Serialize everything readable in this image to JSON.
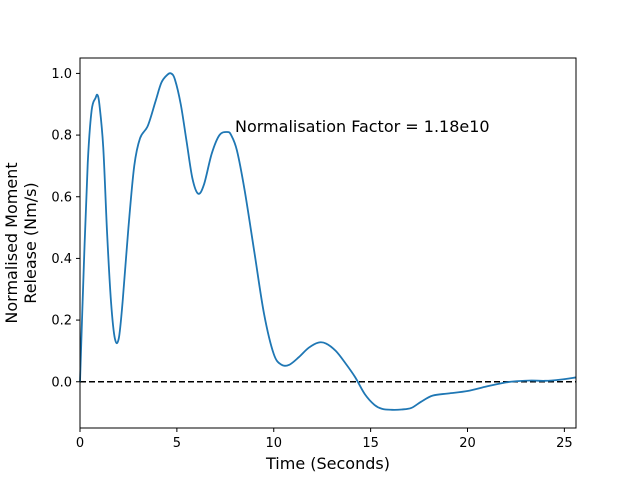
{
  "chart_data": {
    "type": "line",
    "title": "",
    "xlabel": "Time (Seconds)",
    "ylabel_lines": [
      "Normalised Moment",
      "Release (Nm/s)"
    ],
    "xlim": [
      0,
      25.6
    ],
    "ylim": [
      -0.15,
      1.05
    ],
    "xticks": [
      0,
      5,
      10,
      15,
      20,
      25
    ],
    "yticks": [
      0.0,
      0.2,
      0.4,
      0.6,
      0.8,
      1.0
    ],
    "xtick_labels": [
      "0",
      "5",
      "10",
      "15",
      "20",
      "25"
    ],
    "ytick_labels": [
      "0.0",
      "0.2",
      "0.4",
      "0.6",
      "0.8",
      "1.0"
    ],
    "grid": false,
    "annotation": {
      "text": "Normalisation Factor = 1.18e10",
      "x": 8.0,
      "y": 0.81
    },
    "reference_line": {
      "y": 0.0,
      "style": "dashed",
      "color": "#000000"
    },
    "series": [
      {
        "color": "#1f77b4",
        "x": [
          0.0,
          0.2,
          0.4,
          0.6,
          0.8,
          0.9,
          1.0,
          1.2,
          1.4,
          1.6,
          1.8,
          2.0,
          2.2,
          2.5,
          2.8,
          3.1,
          3.5,
          3.9,
          4.2,
          4.5,
          4.7,
          4.9,
          5.2,
          5.5,
          5.8,
          6.1,
          6.4,
          6.8,
          7.2,
          7.6,
          7.8,
          8.1,
          8.5,
          9.0,
          9.5,
          10.0,
          10.4,
          10.8,
          11.3,
          11.8,
          12.3,
          12.7,
          13.2,
          13.7,
          14.2,
          14.7,
          15.2,
          15.6,
          16.1,
          16.6,
          17.1,
          17.6,
          18.2,
          19.0,
          20.0,
          21.0,
          22.0,
          22.6,
          23.3,
          24.0,
          24.8,
          25.6
        ],
        "y": [
          0.0,
          0.38,
          0.71,
          0.88,
          0.92,
          0.93,
          0.9,
          0.76,
          0.48,
          0.26,
          0.14,
          0.14,
          0.26,
          0.5,
          0.7,
          0.79,
          0.83,
          0.91,
          0.97,
          0.995,
          1.0,
          0.98,
          0.9,
          0.78,
          0.66,
          0.61,
          0.64,
          0.74,
          0.8,
          0.81,
          0.8,
          0.75,
          0.62,
          0.42,
          0.22,
          0.09,
          0.055,
          0.055,
          0.08,
          0.11,
          0.127,
          0.124,
          0.1,
          0.06,
          0.015,
          -0.04,
          -0.075,
          -0.088,
          -0.091,
          -0.09,
          -0.085,
          -0.065,
          -0.045,
          -0.038,
          -0.03,
          -0.015,
          -0.002,
          0.002,
          0.004,
          0.003,
          0.007,
          0.014
        ]
      }
    ]
  }
}
